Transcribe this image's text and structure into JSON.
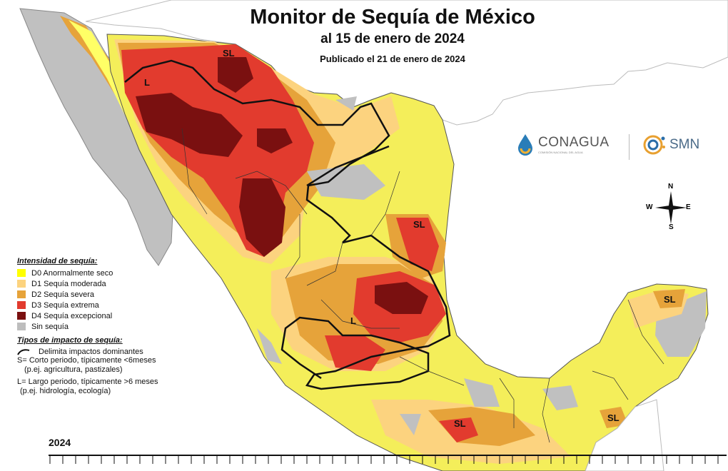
{
  "title": "Monitor de Sequía de México",
  "subtitle": "al 15 de enero de 2024",
  "published": "Publicado el 21 de enero de 2024",
  "legend": {
    "intensity_heading": "Intensidad de sequía:",
    "intensity_items": [
      {
        "label": "D0 Anormalmente seco",
        "color": "#ffff00"
      },
      {
        "label": "D1 Sequía moderada",
        "color": "#fcd37f"
      },
      {
        "label": "D2 Sequía severa",
        "color": "#e6a33a"
      },
      {
        "label": "D3 Sequía extrema",
        "color": "#e23b2e"
      },
      {
        "label": "D4 Sequía excepcional",
        "color": "#7a1010"
      },
      {
        "label": "Sin sequía",
        "color": "#bdbdbd"
      }
    ],
    "impact_heading": "Tipos de impacto de sequía:",
    "impact_line_label": "Delimita impactos dominantes",
    "impact_short_1": "S= Corto periodo, típicamente <6meses",
    "impact_short_2": "(p.ej. agricultura, pastizales)",
    "impact_long_1": "L= Largo periodo, típicamente >6 meses",
    "impact_long_2": "(p.ej. hidrología, ecología)"
  },
  "map_labels": {
    "sl_north": "SL",
    "l_northwest": "L",
    "sl_northeast": "SL",
    "l_central": "L",
    "sl_yucatan": "SL",
    "sl_south": "SL",
    "sl_southeast": "SL"
  },
  "logos": {
    "conagua": "CONAGUA",
    "conagua_sub": "COMISIÓN NACIONAL DEL AGUA",
    "smn": "SMN"
  },
  "compass": {
    "n": "N",
    "s": "S",
    "e": "E",
    "w": "W"
  },
  "timeline": {
    "year": "2024"
  },
  "colors": {
    "sea": "#ffffff",
    "us_land": "#ffffff",
    "boundary": "#111111"
  }
}
